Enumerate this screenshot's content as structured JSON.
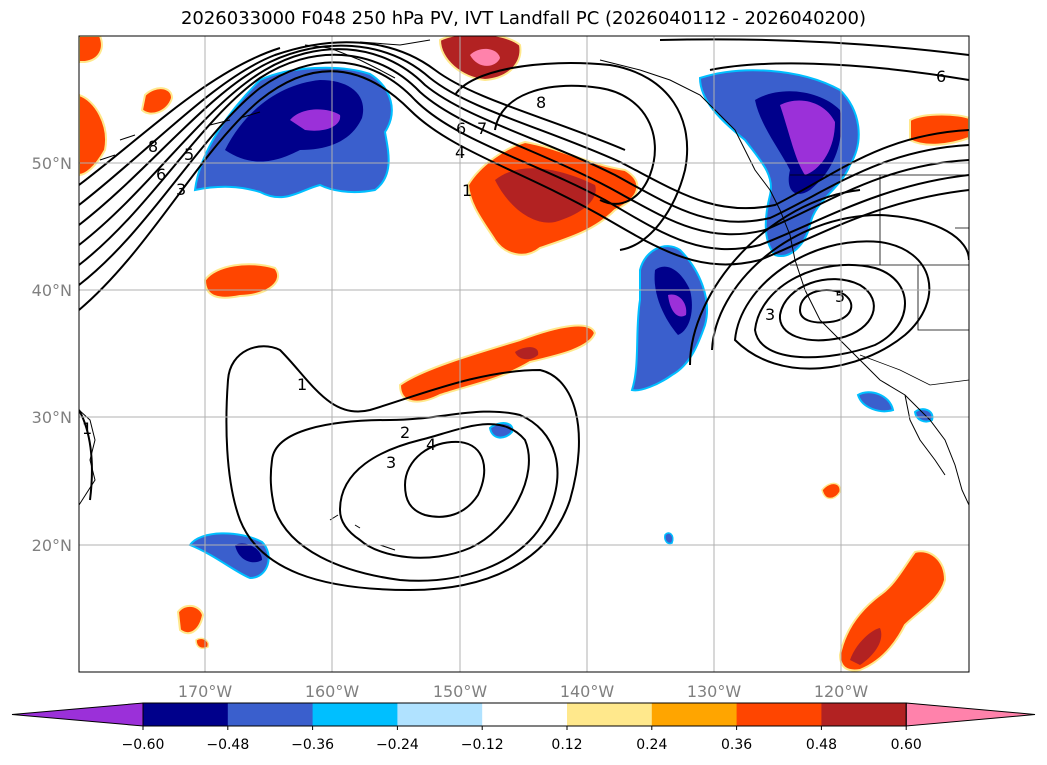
{
  "title": "2026033000 F048 250 hPa PV, IVT Landfall PC (2026040112 - 2026040200)",
  "map": {
    "lon_ticks": [
      "170°W",
      "160°W",
      "150°W",
      "140°W",
      "130°W",
      "120°W"
    ],
    "lat_ticks": [
      "50°N",
      "40°N",
      "30°N",
      "20°N"
    ]
  },
  "colorbar": {
    "levels": [
      "−0.60",
      "−0.48",
      "−0.36",
      "−0.24",
      "−0.12",
      "0.12",
      "0.24",
      "0.36",
      "0.48",
      "0.60"
    ],
    "colors": [
      "#9b30d9",
      "#00008b",
      "#3a5fcd",
      "#00bfff",
      "#b0e2ff",
      "#ffffff",
      "#ffe88c",
      "#ffa500",
      "#ff4500",
      "#b22222",
      "#ff82ab"
    ]
  },
  "contour_labels": [
    "8",
    "6",
    "5",
    "3",
    "6",
    "7",
    "4",
    "1",
    "8",
    "6",
    "3",
    "5",
    "1",
    "2",
    "4",
    "3",
    "1"
  ],
  "colors": {
    "neg_strong": "#9b30d9",
    "neg_dark": "#00008b",
    "neg_mid": "#3a5fcd",
    "neg_light": "#00bfff",
    "pos_mid": "#ff4500",
    "pos_dark": "#b22222",
    "pos_pink": "#ff82ab",
    "pos_yellow": "#ffe88c"
  }
}
